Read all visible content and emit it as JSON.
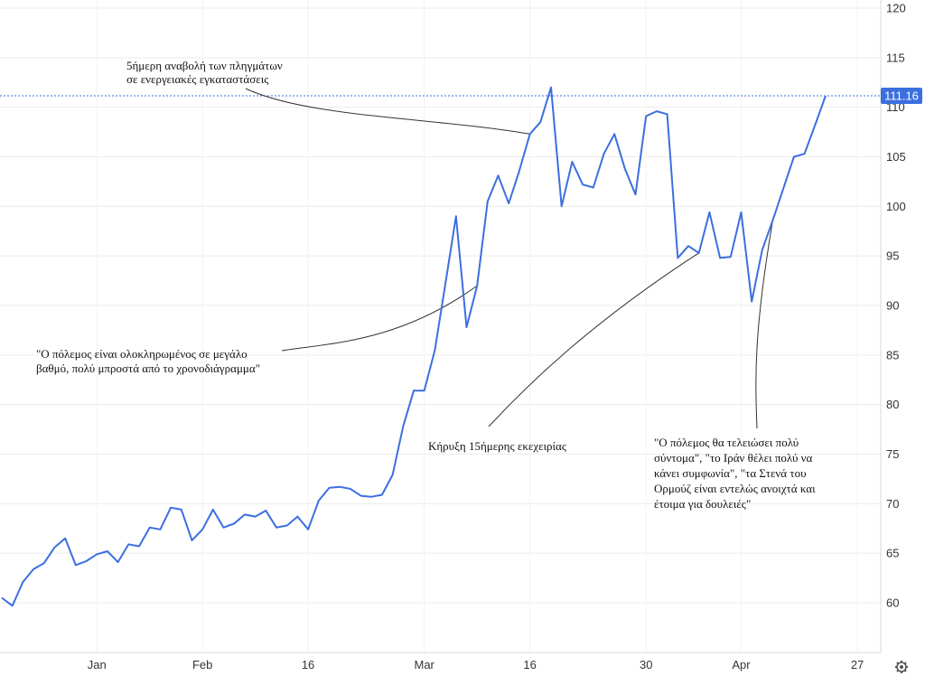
{
  "chart_data": {
    "type": "line",
    "title": "",
    "xlabel": "",
    "ylabel": "",
    "ylim": [
      56,
      121
    ],
    "y_ticks": [
      60,
      65,
      70,
      75,
      80,
      85,
      90,
      95,
      100,
      105,
      110,
      115,
      120
    ],
    "x_ticks": [
      {
        "label": "Jan",
        "index": 9
      },
      {
        "label": "Feb",
        "index": 19
      },
      {
        "label": "16",
        "index": 29
      },
      {
        "label": "Mar",
        "index": 40
      },
      {
        "label": "16",
        "index": 50
      },
      {
        "label": "30",
        "index": 61
      },
      {
        "label": "Apr",
        "index": 70
      },
      {
        "label": "27",
        "index": 81
      }
    ],
    "grid": true,
    "line_color": "#3b6fe0",
    "series": [
      {
        "values": [
          60.5,
          59.7,
          62.1,
          63.4,
          64.0,
          65.6,
          66.5,
          63.8,
          64.2,
          64.9,
          65.2,
          64.1,
          65.9,
          65.7,
          67.6,
          67.4,
          69.6,
          69.4,
          66.3,
          67.4,
          69.4,
          67.6,
          68.0,
          68.9,
          68.7,
          69.3,
          67.6,
          67.8,
          68.7,
          67.4,
          70.3,
          71.6,
          71.7,
          71.5,
          70.8,
          70.7,
          70.9,
          72.9,
          77.8,
          81.4,
          81.4,
          85.5,
          92.2,
          99.0,
          87.8,
          92.0,
          100.5,
          103.1,
          100.3,
          103.6,
          107.3,
          108.5,
          112.0,
          100.0,
          104.5,
          102.2,
          101.9,
          105.3,
          107.3,
          103.8,
          101.2,
          109.1,
          109.6,
          109.3,
          94.8,
          96.0,
          95.3,
          99.4,
          94.8,
          94.9,
          99.4,
          90.4,
          95.6,
          98.6,
          101.8,
          105.0,
          105.3,
          108.2,
          111.16
        ]
      }
    ],
    "last_value": "111.16",
    "annotations": [
      {
        "lines": [
          "5ήμερη αναβολή των πληγμάτων",
          "σε ενεργειακές εγκαταστάσεις"
        ],
        "target_index": 50
      },
      {
        "lines": [
          "\"Ο πόλεμος είναι ολοκληρωμένος σε μεγάλο",
          "βαθμό, πολύ μπροστά από το χρονοδιάγραμμα\""
        ],
        "target_index": 45
      },
      {
        "lines": [
          "Κήρυξη 15ήμερης εκεχειρίας"
        ],
        "target_index": 66
      },
      {
        "lines": [
          "\"Ο πόλεμος θα τελειώσει πολύ",
          "σύντομα\", \"το Ιράν θέλει πολύ να",
          "κάνει συμφωνία\", \"τα Στενά του",
          "Ορμούζ είναι εντελώς ανοιχτά και",
          "έτοιμα για δουλειές\""
        ],
        "target_index": 73
      }
    ]
  }
}
